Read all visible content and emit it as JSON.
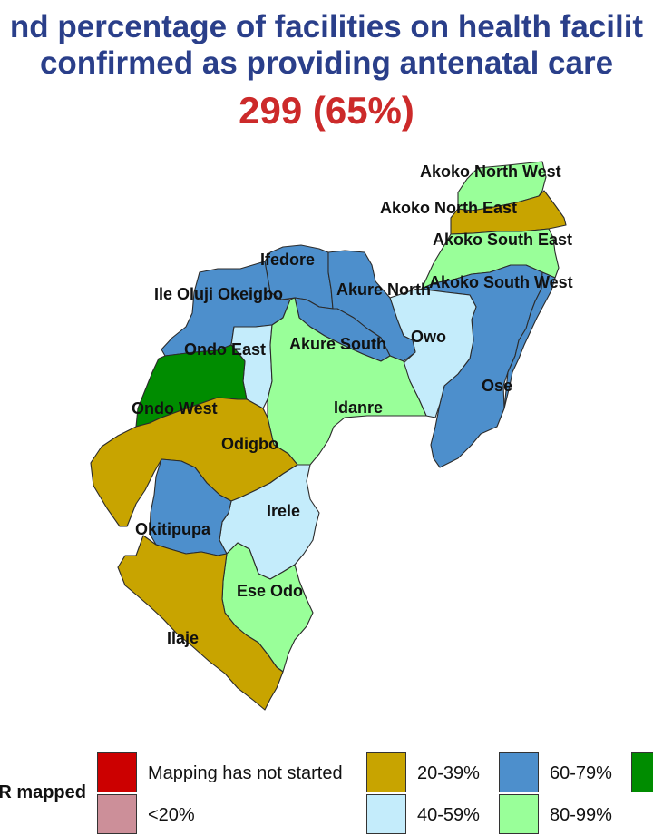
{
  "title": {
    "line1": "nd percentage of facilities on health facilit",
    "line2": "confirmed as providing antenatal care",
    "headline": "299 (65%)"
  },
  "map": {
    "lgas": [
      {
        "name": "Akoko North West",
        "category": "80-99%"
      },
      {
        "name": "Akoko North East",
        "category": "20-39%"
      },
      {
        "name": "Akoko South East",
        "category": "80-99%"
      },
      {
        "name": "Akoko South West",
        "category": "60-79%"
      },
      {
        "name": "Ifedore",
        "category": "60-79%"
      },
      {
        "name": "Ile Oluji Okeigbo",
        "category": "60-79%"
      },
      {
        "name": "Akure North",
        "category": "60-79%"
      },
      {
        "name": "Owo",
        "category": "40-59%"
      },
      {
        "name": "Ondo East",
        "category": "40-59%"
      },
      {
        "name": "Akure South",
        "category": "60-79%"
      },
      {
        "name": "Ondo West",
        "category": "100%"
      },
      {
        "name": "Idanre",
        "category": "80-99%"
      },
      {
        "name": "Ose",
        "category": "60-79%"
      },
      {
        "name": "Odigbo",
        "category": "20-39%"
      },
      {
        "name": "Irele",
        "category": "40-59%"
      },
      {
        "name": "Okitipupa",
        "category": "60-79%"
      },
      {
        "name": "Ese Odo",
        "category": "80-99%"
      },
      {
        "name": "Ilaje",
        "category": "20-39%"
      }
    ]
  },
  "legend": {
    "title": "R mapped",
    "items": [
      {
        "label": "Mapping has not started",
        "color": "#cc0000"
      },
      {
        "label": "<20%",
        "color": "#cc8f99"
      },
      {
        "label": "20-39%",
        "color": "#c8a400"
      },
      {
        "label": "40-59%",
        "color": "#c4ecfb"
      },
      {
        "label": "60-79%",
        "color": "#4d8fcc"
      },
      {
        "label": "80-99%",
        "color": "#99ff99"
      },
      {
        "label": "",
        "color": "#008c00"
      }
    ]
  },
  "colors": {
    "title": "#2a3f8a",
    "headline": "#cc2a2a",
    "border": "#2b2b2b"
  }
}
